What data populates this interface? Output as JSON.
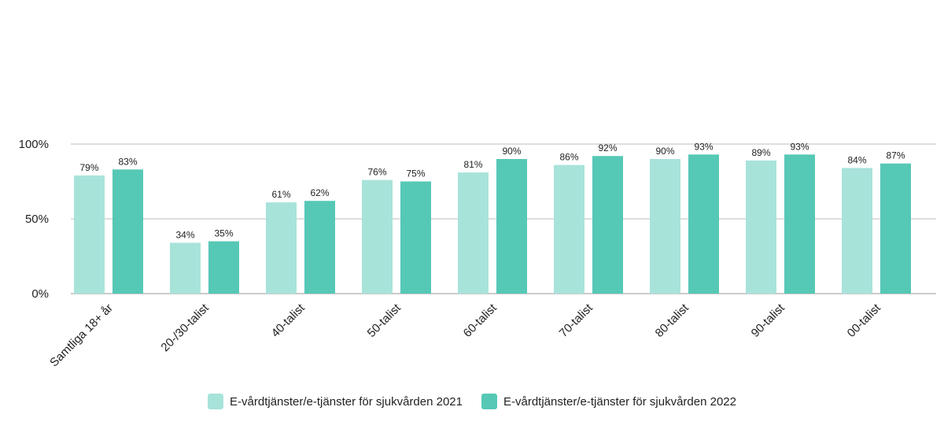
{
  "chart_data": {
    "type": "bar",
    "categories": [
      "Samtliga 18+ år",
      "20-/30-talist",
      "40-talist",
      "50-talist",
      "60-talist",
      "70-talist",
      "80-talist",
      "90-talist",
      "00-talist"
    ],
    "series": [
      {
        "name": "E-vårdtjänster/e-tjänster för sjukvården 2021",
        "values": [
          79,
          34,
          61,
          76,
          81,
          86,
          90,
          89,
          84
        ],
        "labels": [
          "79%",
          "34%",
          "61%",
          "76%",
          "81%",
          "86%",
          "90%",
          "89%",
          "84%"
        ],
        "color": "#a8e3da"
      },
      {
        "name": "E-vårdtjänster/e-tjänster för sjukvården 2022",
        "values": [
          83,
          35,
          62,
          75,
          90,
          92,
          93,
          93,
          87
        ],
        "labels": [
          "83%",
          "35%",
          "62%",
          "75%",
          "90%",
          "92%",
          "93%",
          "93%",
          "87%"
        ],
        "color": "#56c8b6"
      }
    ],
    "y_ticks": [
      {
        "value": 0,
        "label": "0%"
      },
      {
        "value": 50,
        "label": "50%"
      },
      {
        "value": 100,
        "label": "100%"
      }
    ],
    "ylim": [
      0,
      100
    ],
    "grid": true,
    "legend_position": "bottom",
    "title": "",
    "xlabel": "",
    "ylabel": ""
  }
}
